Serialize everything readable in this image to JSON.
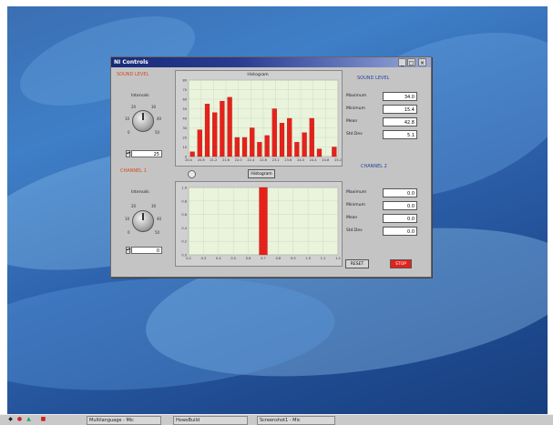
{
  "window": {
    "title": "NI Controls",
    "buttons": {
      "minimize": "_",
      "maximize": "□",
      "close": "×"
    }
  },
  "left_top": {
    "section_title": "SOUND LEVEL",
    "knob_label": "Intervals",
    "ticks": [
      "0",
      "10",
      "20",
      "30",
      "40",
      "50"
    ],
    "value": "25"
  },
  "left_bottom": {
    "section_title": "CHANNEL 1",
    "knob_label": "Intervals",
    "ticks": [
      "0",
      "10",
      "20",
      "30",
      "40",
      "50"
    ],
    "value": "0"
  },
  "histogram_top": {
    "title": "Histogram",
    "y_ticks": [
      "80",
      "70",
      "60",
      "50",
      "40",
      "30",
      "20",
      "10",
      "0"
    ],
    "x_ticks": [
      "20.4",
      "20.8",
      "21.2",
      "21.6",
      "22.0",
      "22.4",
      "22.8",
      "23.2",
      "23.6",
      "24.0",
      "24.4",
      "24.8",
      "25.2"
    ]
  },
  "histogram_bottom": {
    "title": "Histogram",
    "toggle": "Histogram",
    "y_ticks": [
      "1.0",
      "0.8",
      "0.6",
      "0.4",
      "0.2",
      "0.0"
    ],
    "x_ticks": [
      "0.2",
      "0.3",
      "0.4",
      "0.5",
      "0.6",
      "0.7",
      "0.8",
      "0.9",
      "1.0",
      "1.1",
      "1.2"
    ]
  },
  "stats_top": {
    "section_title": "SOUND LEVEL",
    "rows": [
      {
        "label": "Maximum",
        "value": "34.0"
      },
      {
        "label": "Minimum",
        "value": "15.4"
      },
      {
        "label": "Mean",
        "value": "42.8"
      },
      {
        "label": "Std.Dev",
        "value": "5.1"
      }
    ]
  },
  "stats_bottom": {
    "section_title": "CHANNEL 2",
    "rows": [
      {
        "label": "Maximum",
        "value": "0.0"
      },
      {
        "label": "Minimum",
        "value": "0.0"
      },
      {
        "label": "Mean",
        "value": "0.0"
      },
      {
        "label": "Std.Dev",
        "value": "0.0"
      }
    ]
  },
  "buttons": {
    "reset": "RESET",
    "stop": "STOP"
  },
  "taskbar": {
    "items": [
      "Multilanguage - Mic",
      "HowsBuild",
      "Screenshot1 - Mic"
    ]
  },
  "colors": {
    "bar": "#e4221b",
    "plot_bg": "#eaf3dc",
    "section_orange": "#d64a1a",
    "section_blue": "#2a3f9c"
  },
  "chart_data": [
    {
      "type": "bar",
      "title": "Histogram",
      "categories": [
        "20.4",
        "20.8",
        "21.2",
        "21.6",
        "22.0",
        "22.4",
        "22.8",
        "23.2",
        "23.6",
        "24.0",
        "24.4",
        "24.8",
        "25.2",
        "",
        "",
        "",
        "",
        "",
        "",
        ""
      ],
      "values": [
        5,
        28,
        55,
        46,
        58,
        62,
        20,
        20,
        30,
        15,
        22,
        50,
        35,
        40,
        15,
        25,
        40,
        8,
        0,
        10
      ],
      "ylim": [
        0,
        80
      ]
    },
    {
      "type": "bar",
      "title": "Histogram",
      "categories": [
        "0.2",
        "0.3",
        "0.4",
        "0.5",
        "0.6",
        "0.7",
        "0.8",
        "0.9",
        "1.0",
        "1.1",
        "1.2"
      ],
      "values": [
        0,
        0,
        0,
        0,
        0,
        1.0,
        0,
        0,
        0,
        0,
        0
      ],
      "ylim": [
        0,
        1.0
      ]
    }
  ]
}
